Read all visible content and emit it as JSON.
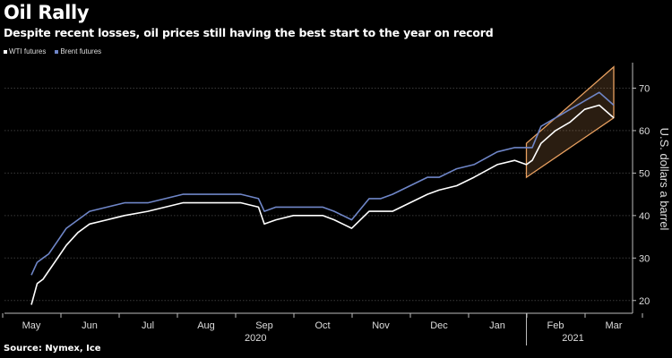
{
  "chart_data": {
    "type": "line",
    "title": "Oil Rally",
    "subtitle": "Despite recent losses, oil prices still having the best start to the year on record",
    "source": "Source: Nymex, Ice",
    "ylabel": "U.S. dollars a barrel",
    "ylim": [
      17,
      76
    ],
    "y_ticks": [
      20,
      30,
      40,
      50,
      60,
      70
    ],
    "x_ticks": [
      "May",
      "Jun",
      "Jul",
      "Aug",
      "Sep",
      "Oct",
      "Nov",
      "Dec",
      "Jan",
      "Feb",
      "Mar"
    ],
    "x_year_labels": [
      "2020",
      "2021"
    ],
    "legend": [
      "WTI futures",
      "Brent futures"
    ],
    "series": [
      {
        "name": "WTI futures",
        "color": "#ffffff",
        "x": [
          0,
          0.1,
          0.2,
          0.3,
          0.45,
          0.6,
          0.8,
          1.0,
          1.3,
          1.6,
          2.0,
          2.3,
          2.6,
          3.0,
          3.3,
          3.6,
          3.9,
          4.0,
          4.2,
          4.5,
          4.8,
          5.0,
          5.2,
          5.5,
          5.8,
          6.0,
          6.2,
          6.5,
          6.8,
          7.0,
          7.3,
          7.6,
          8.0,
          8.3,
          8.5,
          8.6,
          8.75,
          9.0,
          9.25,
          9.5,
          9.75,
          10.0
        ],
        "values": [
          19,
          24,
          25,
          27,
          30,
          33,
          36,
          38,
          39,
          40,
          41,
          42,
          43,
          43,
          43,
          43,
          42,
          38,
          39,
          40,
          40,
          40,
          39,
          37,
          41,
          41,
          41,
          43,
          45,
          46,
          47,
          49,
          52,
          53,
          52,
          53,
          57,
          60,
          62,
          65,
          66,
          63
        ]
      },
      {
        "name": "Brent futures",
        "color": "#6f86c8",
        "x": [
          0,
          0.1,
          0.2,
          0.3,
          0.45,
          0.6,
          0.8,
          1.0,
          1.3,
          1.6,
          2.0,
          2.3,
          2.6,
          3.0,
          3.3,
          3.6,
          3.9,
          4.0,
          4.2,
          4.5,
          4.8,
          5.0,
          5.2,
          5.5,
          5.8,
          6.0,
          6.2,
          6.5,
          6.8,
          7.0,
          7.3,
          7.6,
          8.0,
          8.3,
          8.5,
          8.6,
          8.75,
          9.0,
          9.25,
          9.5,
          9.75,
          10.0
        ],
        "values": [
          26,
          29,
          30,
          31,
          34,
          37,
          39,
          41,
          42,
          43,
          43,
          44,
          45,
          45,
          45,
          45,
          44,
          41,
          42,
          42,
          42,
          42,
          41,
          39,
          44,
          44,
          45,
          47,
          49,
          49,
          51,
          52,
          55,
          56,
          56,
          56,
          61,
          63,
          65,
          67,
          69,
          66
        ]
      }
    ],
    "channel": {
      "color": "#e8a060",
      "lower_start": [
        8.5,
        49
      ],
      "lower_end": [
        10.0,
        63
      ],
      "upper_start": [
        8.5,
        57
      ],
      "upper_end": [
        10.0,
        75
      ]
    }
  }
}
